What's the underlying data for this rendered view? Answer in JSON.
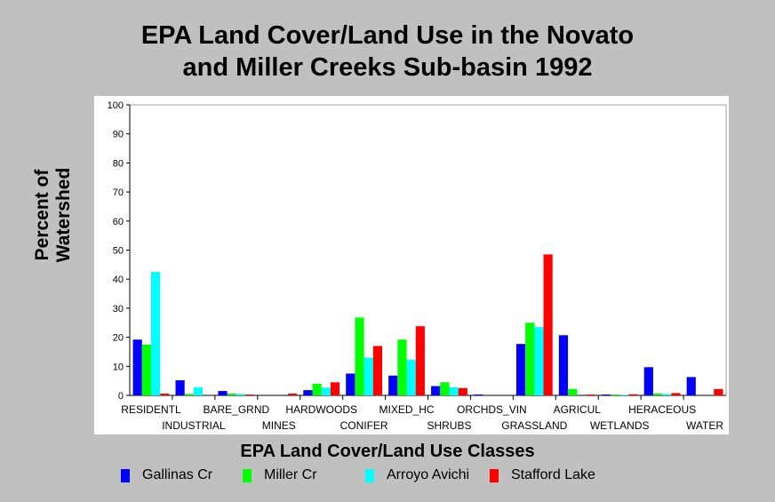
{
  "title_line1": "EPA Land Cover/Land Use in the Novato",
  "title_line2": "and Miller Creeks Sub-basin 1992",
  "chart_data": {
    "type": "bar",
    "title": "EPA Land Cover/Land Use in the Novato and Miller Creeks Sub-basin 1992",
    "xlabel": "EPA Land Cover/Land Use Classes",
    "ylabel": "Percent of\nWatershed",
    "ylim": [
      0,
      100
    ],
    "yticks": [
      0,
      10,
      20,
      30,
      40,
      50,
      60,
      70,
      80,
      90,
      100
    ],
    "grid": false,
    "legend_position": "bottom",
    "categories": [
      "RESIDENTL",
      "INDUSTRIAL",
      "BARE_GRND",
      "MINES",
      "HARDWOODS",
      "CONIFER",
      "MIXED_HC",
      "SHRUBS",
      "ORCHDS_VIN",
      "GRASSLAND",
      "AGRICUL",
      "WETLANDS",
      "HERACEOUS",
      "WATER"
    ],
    "series": [
      {
        "name": "Gallinas Cr",
        "color": "#0000ff",
        "values": [
          19.2,
          5.2,
          1.5,
          0,
          1.8,
          7.5,
          6.8,
          3.2,
          0.3,
          17.7,
          20.7,
          0.3,
          9.7,
          6.3
        ]
      },
      {
        "name": "Miller Cr",
        "color": "#00ff00",
        "values": [
          17.5,
          0.5,
          0.6,
          0,
          4.0,
          26.8,
          19.2,
          4.5,
          0,
          25.0,
          2.2,
          0.3,
          0.6,
          0
        ]
      },
      {
        "name": "Arroyo Avichi",
        "color": "#00ffff",
        "values": [
          42.5,
          2.8,
          0.5,
          0,
          2.7,
          13.0,
          12.3,
          2.8,
          0,
          23.5,
          0,
          0.2,
          0.5,
          0
        ]
      },
      {
        "name": "Stafford Lake",
        "color": "#ff0000",
        "values": [
          0.6,
          0,
          0.3,
          0.6,
          4.5,
          17.0,
          23.8,
          2.5,
          0,
          48.5,
          0.3,
          0.4,
          0.8,
          2.2
        ]
      }
    ]
  }
}
